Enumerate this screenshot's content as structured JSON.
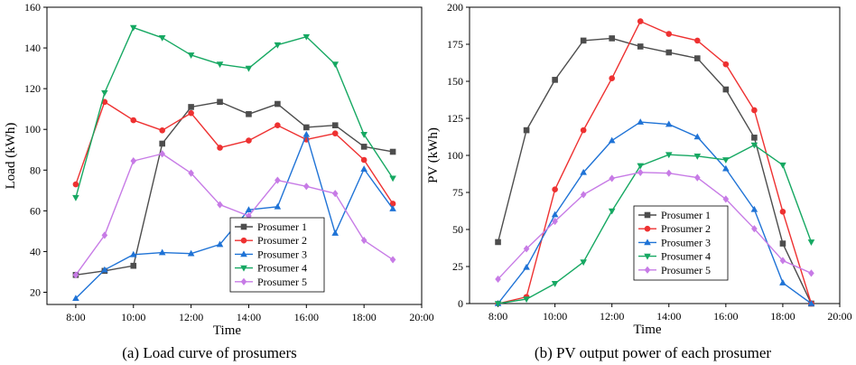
{
  "chart_data": [
    {
      "type": "line",
      "title": "",
      "caption": "(a) Load curve of prosumers",
      "xlabel": "Time",
      "ylabel": "Load (kWh)",
      "x": [
        8,
        9,
        10,
        11,
        12,
        13,
        14,
        15,
        16,
        17,
        18,
        19
      ],
      "xlim": [
        7,
        20
      ],
      "ylim": [
        14,
        160
      ],
      "xticks": [
        8,
        10,
        12,
        14,
        16,
        18,
        20
      ],
      "xtick_labels": [
        "8:00",
        "10:00",
        "12:00",
        "14:00",
        "16:00",
        "18:00",
        "20:00"
      ],
      "yticks": [
        20,
        40,
        60,
        80,
        100,
        120,
        140,
        160
      ],
      "ytick_labels": [
        "20",
        "40",
        "60",
        "80",
        "100",
        "120",
        "140",
        "160"
      ],
      "legend_position": "bottom-right",
      "series": [
        {
          "name": "Prosumer 1",
          "color": "#4d4d4d",
          "marker": "square",
          "values": [
            28.5,
            30.5,
            33,
            93,
            111,
            113.5,
            107.5,
            112.5,
            101,
            102,
            91.5,
            89
          ]
        },
        {
          "name": "Prosumer 2",
          "color": "#ee3131",
          "marker": "circle",
          "values": [
            73,
            113.5,
            104.5,
            99.5,
            108,
            91,
            94.5,
            102,
            95,
            98,
            85,
            63.5
          ]
        },
        {
          "name": "Prosumer 3",
          "color": "#1f73d6",
          "marker": "triangle-up",
          "values": [
            17,
            31,
            38.5,
            39.5,
            39,
            43.5,
            60.5,
            62,
            97.5,
            49,
            80.5,
            61
          ]
        },
        {
          "name": "Prosumer 4",
          "color": "#16a862",
          "marker": "triangle-down",
          "values": [
            66.5,
            118,
            150,
            145,
            136.5,
            132,
            130,
            141.5,
            145.5,
            132,
            97.5,
            76
          ]
        },
        {
          "name": "Prosumer 5",
          "color": "#c77be6",
          "marker": "diamond",
          "values": [
            28.5,
            48,
            84.5,
            88,
            78.5,
            63,
            57.5,
            75,
            72,
            68.5,
            45.5,
            36
          ]
        }
      ]
    },
    {
      "type": "line",
      "title": "",
      "caption": "(b) PV output power of each prosumer",
      "xlabel": "Time",
      "ylabel": "PV (kWh)",
      "x": [
        8,
        9,
        10,
        11,
        12,
        13,
        14,
        15,
        16,
        17,
        18,
        19
      ],
      "xlim": [
        7,
        20
      ],
      "ylim": [
        0,
        200
      ],
      "xticks": [
        8,
        10,
        12,
        14,
        16,
        18,
        20
      ],
      "xtick_labels": [
        "8:00",
        "10:00",
        "12:00",
        "14:00",
        "16:00",
        "18:00",
        "20:00"
      ],
      "yticks": [
        0,
        25,
        50,
        75,
        100,
        125,
        150,
        175,
        200
      ],
      "ytick_labels": [
        "0",
        "25",
        "50",
        "75",
        "100",
        "125",
        "150",
        "175",
        "200"
      ],
      "legend_position": "bottom-right",
      "series": [
        {
          "name": "Prosumer 1",
          "color": "#4d4d4d",
          "marker": "square",
          "values": [
            41.5,
            117,
            151,
            177.5,
            179,
            173.5,
            169.5,
            165.5,
            144.5,
            112,
            40.5,
            0
          ]
        },
        {
          "name": "Prosumer 2",
          "color": "#ee3131",
          "marker": "circle",
          "values": [
            0,
            4.5,
            77,
            117,
            152,
            190.5,
            182,
            177.5,
            161.5,
            130.5,
            62,
            0
          ]
        },
        {
          "name": "Prosumer 3",
          "color": "#1f73d6",
          "marker": "triangle-up",
          "values": [
            0,
            24.5,
            60,
            88.5,
            110,
            122.5,
            121,
            112.5,
            91,
            63.5,
            14,
            0
          ]
        },
        {
          "name": "Prosumer 4",
          "color": "#16a862",
          "marker": "triangle-down",
          "values": [
            0,
            3,
            13.5,
            28,
            62.5,
            93,
            100.5,
            99.5,
            97,
            107,
            93.5,
            41.5
          ]
        },
        {
          "name": "Prosumer 5",
          "color": "#c77be6",
          "marker": "diamond",
          "values": [
            16.5,
            37,
            55.5,
            73.5,
            84.5,
            88.5,
            88,
            85,
            70.5,
            50.5,
            29,
            20.5
          ]
        }
      ]
    }
  ]
}
